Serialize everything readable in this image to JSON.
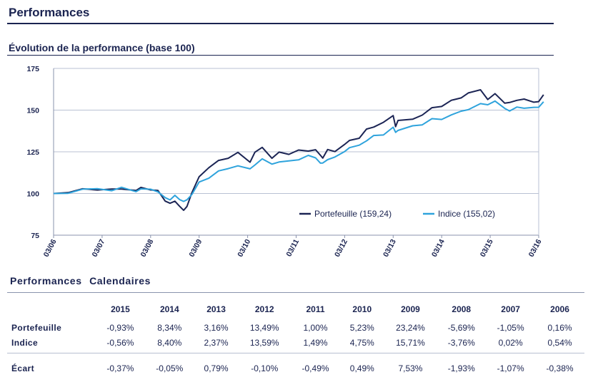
{
  "page": {
    "title": "Performances",
    "subtitle": "Évolution de  la  performance (base 100)"
  },
  "chart_data": {
    "type": "line",
    "title": "Évolution de  la  performance (base 100)",
    "xlabel": "",
    "ylabel": "",
    "ylim": [
      75,
      175
    ],
    "yticks": [
      "75",
      "100",
      "125",
      "150",
      "175"
    ],
    "xticks": [
      "03/06",
      "03/07",
      "03/08",
      "03/09",
      "03/10",
      "03/11",
      "03/12",
      "03/13",
      "03/14",
      "03/15",
      "03/16"
    ],
    "grid": "horizontal",
    "legend_position": "bottom-right",
    "x": [
      2006.2,
      2006.5,
      2006.8,
      2007.1,
      2007.4,
      2007.6,
      2007.9,
      2008.0,
      2008.2,
      2008.35,
      2008.5,
      2008.6,
      2008.7,
      2008.8,
      2008.88,
      2008.95,
      2009.05,
      2009.2,
      2009.4,
      2009.6,
      2009.8,
      2010.0,
      2010.25,
      2010.35,
      2010.5,
      2010.7,
      2010.85,
      2011.05,
      2011.25,
      2011.45,
      2011.6,
      2011.7,
      2011.75,
      2011.85,
      2012.0,
      2012.2,
      2012.3,
      2012.5,
      2012.65,
      2012.8,
      2013.0,
      2013.2,
      2013.25,
      2013.3,
      2013.6,
      2013.8,
      2014.0,
      2014.2,
      2014.4,
      2014.6,
      2014.75,
      2015.0,
      2015.15,
      2015.3,
      2015.5,
      2015.6,
      2015.75,
      2015.9,
      2016.1,
      2016.2,
      2016.3
    ],
    "series": [
      {
        "name": "Portefeuille (159,24)",
        "color": "#1b2454",
        "values": [
          100,
          101,
          102,
          103,
          102,
          103,
          102,
          103,
          103,
          101,
          96,
          94,
          95,
          93,
          89,
          93,
          100,
          110,
          116,
          119,
          122,
          124,
          119,
          125,
          127,
          122,
          124,
          124,
          126,
          125,
          127,
          122,
          122,
          126,
          125,
          130,
          131,
          134,
          138,
          140,
          143,
          146,
          141,
          143,
          145,
          147,
          151,
          153,
          155,
          158,
          160,
          162,
          157,
          159,
          155,
          154,
          156,
          157,
          154,
          156,
          159.24
        ],
        "final": "159,24"
      },
      {
        "name": "Indice (155,02)",
        "color": "#2ea3dc",
        "values": [
          100,
          101,
          102,
          103,
          102,
          103,
          102,
          102,
          103,
          101,
          97,
          97,
          98,
          97,
          95,
          96,
          100,
          106,
          110,
          113,
          115,
          117,
          114,
          118,
          120,
          118,
          119,
          119,
          121,
          122,
          122,
          118,
          118,
          121,
          121,
          126,
          127,
          129,
          132,
          134,
          136,
          139,
          137,
          138,
          140,
          142,
          144,
          145,
          147,
          149,
          151,
          153,
          154,
          155,
          151,
          150,
          151,
          152,
          151,
          152,
          155.02
        ],
        "final": "155,02"
      }
    ]
  },
  "calendar": {
    "title": "Performances  Calendaires",
    "years": [
      "2015",
      "2014",
      "2013",
      "2012",
      "2011",
      "2010",
      "2009",
      "2008",
      "2007",
      "2006"
    ],
    "rows": [
      {
        "label": "Portefeuille",
        "values": [
          "-0,93%",
          "8,34%",
          "3,16%",
          "13,49%",
          "1,00%",
          "5,23%",
          "23,24%",
          "-5,69%",
          "-1,05%",
          "0,16%"
        ]
      },
      {
        "label": "Indice",
        "values": [
          "-0,56%",
          "8,40%",
          "2,37%",
          "13,59%",
          "1,49%",
          "4,75%",
          "15,71%",
          "-3,76%",
          "0,02%",
          "0,54%"
        ]
      }
    ],
    "ecart": {
      "label": "Écart",
      "values": [
        "-0,37%",
        "-0,05%",
        "0,79%",
        "-0,10%",
        "-0,49%",
        "0,49%",
        "7,53%",
        "-1,93%",
        "-1,07%",
        "-0,38%"
      ]
    }
  }
}
